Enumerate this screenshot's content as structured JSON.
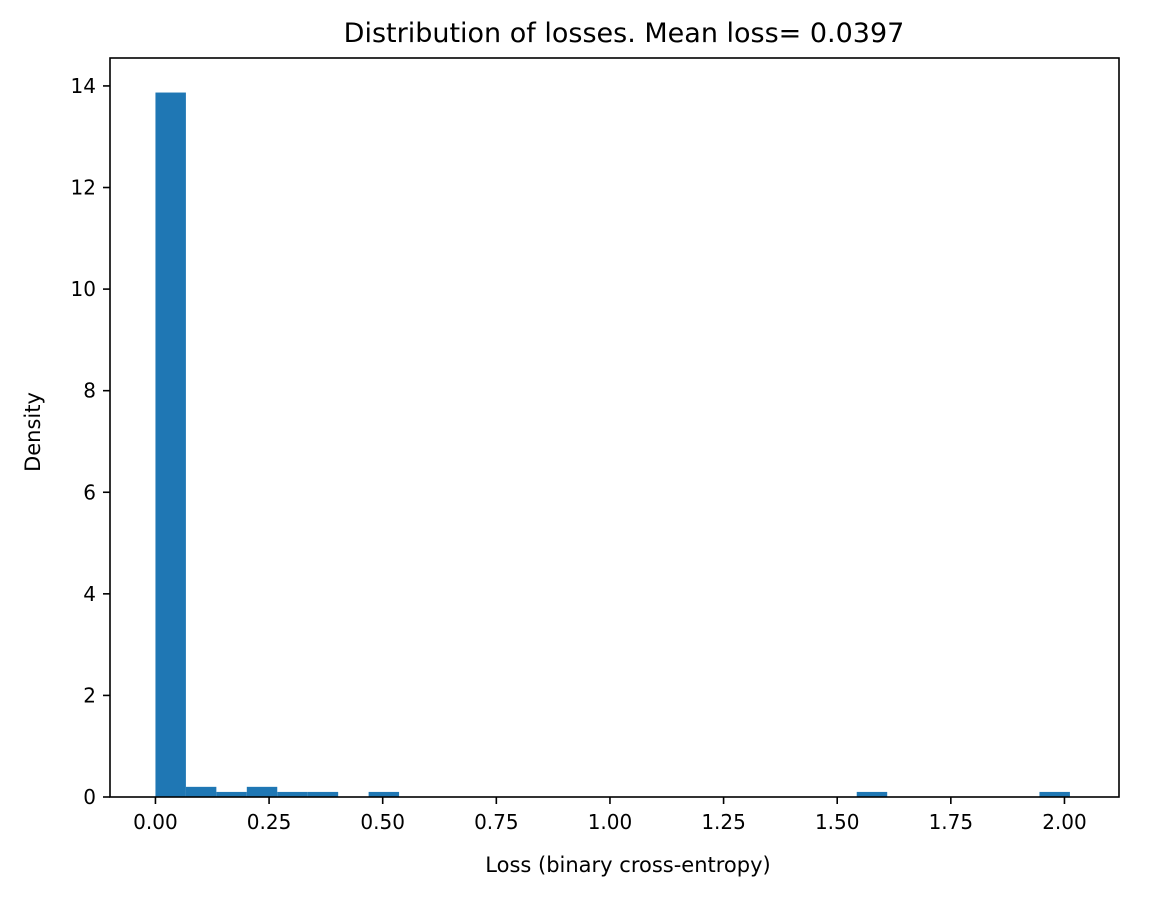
{
  "chart_data": {
    "type": "bar",
    "title": "Distribution of losses. Mean loss= 0.0397",
    "xlabel": "Loss (binary cross-entropy)",
    "ylabel": "Density",
    "xlim": [
      -0.1,
      2.12
    ],
    "ylim": [
      0,
      14.55
    ],
    "xticks": [
      0.0,
      0.25,
      0.5,
      0.75,
      1.0,
      1.25,
      1.5,
      1.75,
      2.0
    ],
    "xtick_labels": [
      "0.00",
      "0.25",
      "0.50",
      "0.75",
      "1.00",
      "1.25",
      "1.50",
      "1.75",
      "2.00"
    ],
    "yticks": [
      0,
      2,
      4,
      6,
      8,
      10,
      12,
      14
    ],
    "ytick_labels": [
      "0",
      "2",
      "4",
      "6",
      "8",
      "10",
      "12",
      "14"
    ],
    "bar_color": "#1f77b4",
    "grid": false,
    "bins": [
      {
        "x0": 0.0,
        "x1": 0.067,
        "value": 13.87
      },
      {
        "x0": 0.067,
        "x1": 0.134,
        "value": 0.2
      },
      {
        "x0": 0.134,
        "x1": 0.201,
        "value": 0.1
      },
      {
        "x0": 0.201,
        "x1": 0.268,
        "value": 0.2
      },
      {
        "x0": 0.268,
        "x1": 0.335,
        "value": 0.1
      },
      {
        "x0": 0.335,
        "x1": 0.402,
        "value": 0.1
      },
      {
        "x0": 0.469,
        "x1": 0.536,
        "value": 0.1
      },
      {
        "x0": 1.543,
        "x1": 1.61,
        "value": 0.1
      },
      {
        "x0": 1.945,
        "x1": 2.012,
        "value": 0.1
      }
    ]
  }
}
